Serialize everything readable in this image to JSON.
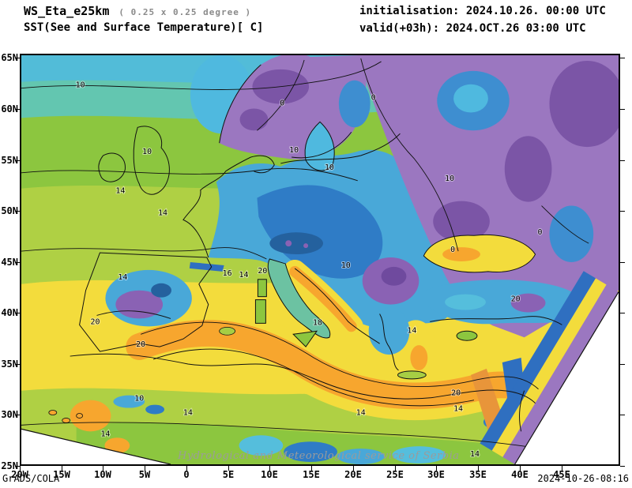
{
  "header": {
    "model": "WS_Eta_e25km",
    "resolution": "( 0.25 x 0.25 degree )",
    "variable": "SST(See and Surface Temperature)[ C]",
    "initialisation": "initialisation: 2024.10.26. 00:00 UTC",
    "valid": "valid(+03h): 2024.OCT.26 03:00 UTC"
  },
  "map": {
    "lat_labels": [
      "65N",
      "60N",
      "55N",
      "50N",
      "45N",
      "40N",
      "35N",
      "30N",
      "25N"
    ],
    "lon_labels": [
      "20W",
      "15W",
      "10W",
      "5W",
      "0",
      "5E",
      "10E",
      "15E",
      "20E",
      "25E",
      "30E",
      "35E",
      "40E",
      "45E"
    ],
    "contour_labels": [
      "10",
      "0",
      "0",
      "10",
      "10",
      "10",
      "14",
      "14",
      "10",
      "0",
      "0",
      "14",
      "16",
      "14",
      "20",
      "20",
      "20",
      "10",
      "18",
      "14",
      "20",
      "20",
      "14",
      "14",
      "10",
      "14",
      "14",
      "14"
    ],
    "watermark": "Hydrological and Meteorological service of Serbia"
  },
  "footer": {
    "credit": "GrADS/COLA",
    "timestamp": "2024-10-26-08:16"
  },
  "chart_data": {
    "type": "heatmap",
    "title": "SST(See and Surface Temperature)[ C]",
    "units": "C",
    "contour_levels_labeled": [
      0,
      10,
      14,
      16,
      18,
      20
    ],
    "lat_range": [
      "25N",
      "65N"
    ],
    "lon_range": [
      "20W",
      "45E"
    ],
    "legend_position": "none",
    "palette_cold_to_warm": [
      "#6F4A9E",
      "#7B55A6",
      "#8A62B4",
      "#9B77C0",
      "#24619E",
      "#2F6FC0",
      "#2F7CC6",
      "#3E8ED0",
      "#49A8D8",
      "#4FB9DF",
      "#52BCD8",
      "#55BEDC",
      "#5EC6C6",
      "#63C6B0",
      "#6CC2A2",
      "#8CC63F",
      "#AFD044",
      "#F3DC3C",
      "#F7A62E",
      "#E8953A"
    ]
  }
}
